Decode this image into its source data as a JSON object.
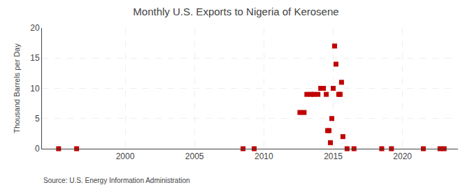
{
  "chart_data": {
    "type": "scatter",
    "title": "Monthly U.S. Exports to Nigeria of Kerosene",
    "ylabel": "Thousand Barrels per Day",
    "annotations": [
      "Source: U.S. Energy Information Administration"
    ],
    "color": "#c00000",
    "marker": "square",
    "grid": true,
    "xlim": [
      1994,
      2024
    ],
    "ylim": [
      0,
      20
    ],
    "xticks": [
      2000,
      2005,
      2010,
      2015,
      2020
    ],
    "yticks": [
      0,
      5,
      10,
      15,
      20
    ],
    "x": [
      1995.2,
      1996.5,
      2008.5,
      2009.3,
      2012.6,
      2012.9,
      2013.1,
      2013.4,
      2013.6,
      2013.9,
      2014.1,
      2014.2,
      2014.3,
      2014.5,
      2014.6,
      2014.7,
      2014.8,
      2014.9,
      2015.0,
      2015.1,
      2015.2,
      2015.4,
      2015.5,
      2015.6,
      2015.7,
      2016.0,
      2016.5,
      2018.5,
      2019.2,
      2021.5,
      2022.7,
      2023.0
    ],
    "values": [
      0,
      0,
      0,
      0,
      6,
      6,
      9,
      9,
      9,
      9,
      10,
      10,
      10,
      9,
      3,
      3,
      1,
      5,
      10,
      17,
      14,
      9,
      9,
      11,
      2,
      0,
      0,
      0,
      0,
      0,
      0,
      0
    ]
  }
}
